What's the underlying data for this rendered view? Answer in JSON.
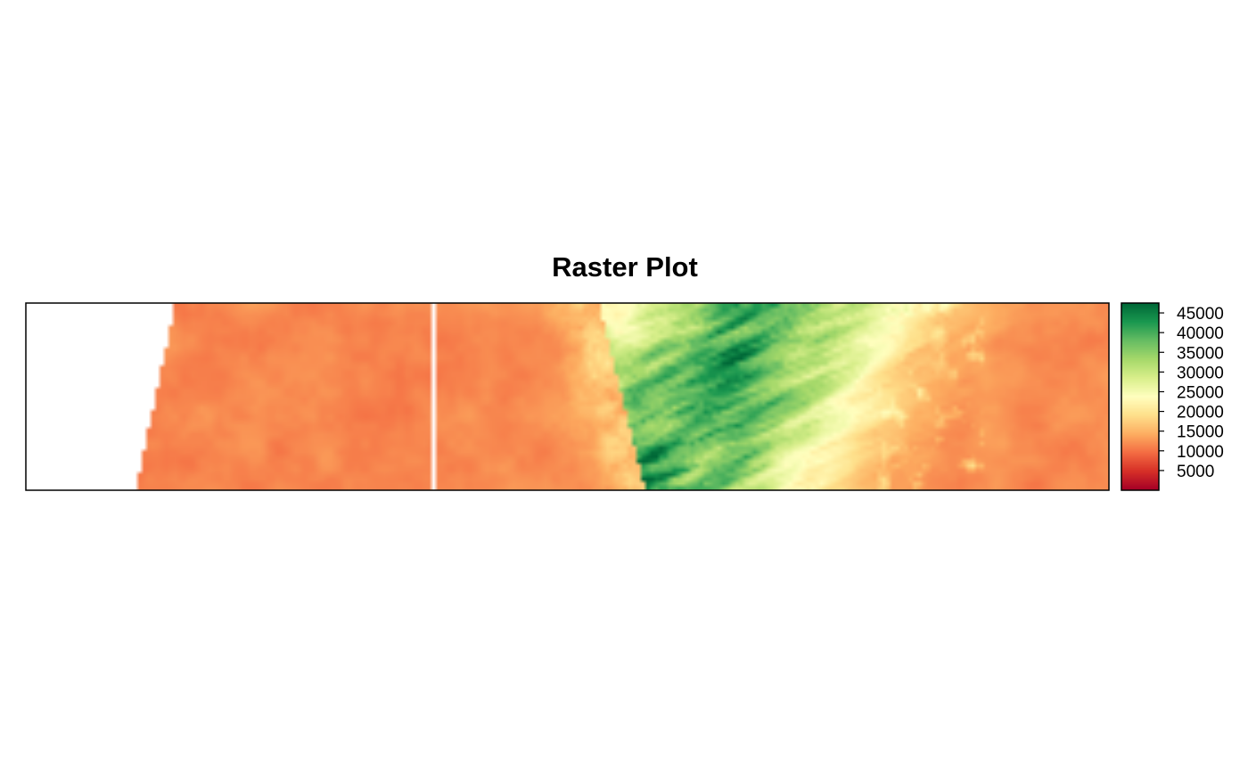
{
  "chart_data": {
    "type": "heatmap",
    "title": "Raster Plot",
    "xlabel": "",
    "ylabel": "",
    "axes_shown": false,
    "grid": false,
    "legend": {
      "type": "colorbar",
      "placement": "right",
      "range": [
        0,
        47500
      ],
      "ticks": [
        5000,
        10000,
        15000,
        20000,
        25000,
        30000,
        35000,
        40000,
        45000
      ],
      "tick_labels": [
        "5000",
        "10000",
        "15000",
        "20000",
        "25000",
        "30000",
        "35000",
        "40000",
        "45000"
      ],
      "palette": [
        "#a50026",
        "#d73027",
        "#f46d43",
        "#fdae61",
        "#fee08b",
        "#ffffbf",
        "#d9ef8b",
        "#a6d96a",
        "#66bd63",
        "#1a9850",
        "#006837"
      ]
    },
    "raster": {
      "description_of_values": "Cell values of the displayed raster; most of the scene is ~10000-14000, with a central high-value band reaching ~45000+",
      "nodata_region": "left edge (white, no data)",
      "typical_low_value": 11500,
      "peak_value": 46000
    }
  }
}
